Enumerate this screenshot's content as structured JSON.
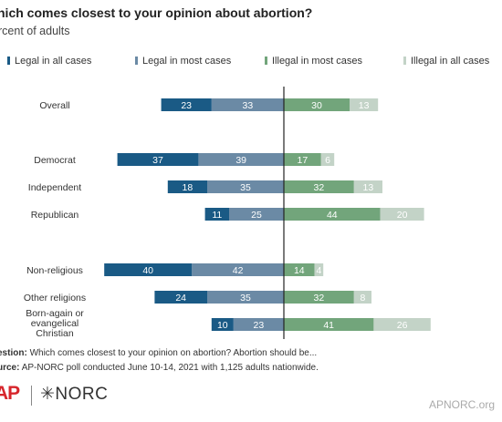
{
  "title": "hich comes closest to your opinion about abortion?",
  "subtitle": "rcent of adults",
  "chart_data": {
    "type": "bar",
    "orientation": "horizontal-diverging",
    "categories": [
      "Overall",
      "Democrat",
      "Independent",
      "Republican",
      "Non-religious",
      "Other religions",
      "Born-again or evangelical Christian"
    ],
    "series": [
      {
        "name": "Legal in all cases",
        "values": [
          23,
          37,
          18,
          11,
          40,
          24,
          10
        ],
        "color": "#1a5a85",
        "side": "left"
      },
      {
        "name": "Legal in most cases",
        "values": [
          33,
          39,
          35,
          25,
          42,
          35,
          23
        ],
        "color": "#6b8aa5",
        "side": "left"
      },
      {
        "name": "Illegal in most cases",
        "values": [
          30,
          17,
          32,
          44,
          14,
          32,
          41
        ],
        "color": "#72a57b",
        "side": "right"
      },
      {
        "name": "Illegal in all cases",
        "values": [
          13,
          6,
          13,
          20,
          4,
          8,
          26
        ],
        "color": "#c3d3c7",
        "side": "right"
      }
    ],
    "legend_position": "top",
    "grid": false
  },
  "footnotes": {
    "question_label": "estion:",
    "question_text": "Which comes closest to your opinion on abortion? Abortion should be...",
    "source_label": "urce:",
    "source_text": "AP-NORC poll conducted June 10-14, 2021 with 1,125 adults nationwide."
  },
  "logos": {
    "ap": "AP",
    "norc": "NORC",
    "norc_mark": "✳"
  },
  "site": "APNORC.org"
}
